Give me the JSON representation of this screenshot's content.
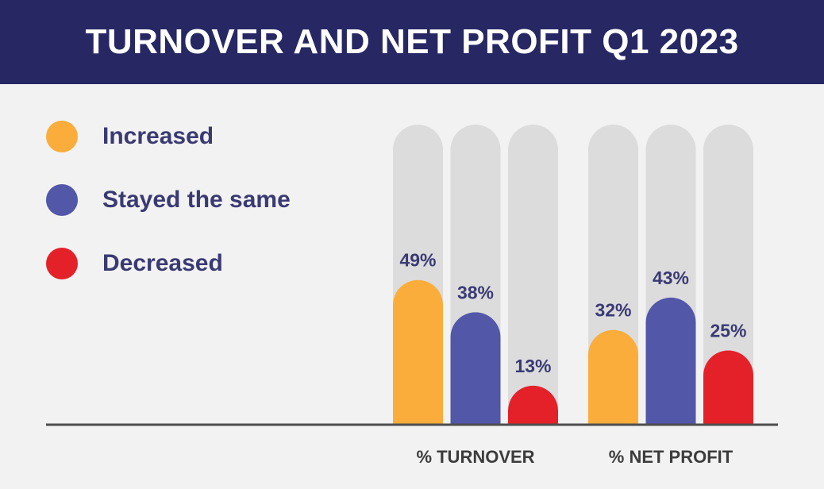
{
  "header": {
    "title": "TURNOVER AND NET PROFIT Q1 2023"
  },
  "colors": {
    "header_bg": "#262763",
    "increased": "#fbad3b",
    "stayed_the_same": "#5257a8",
    "decreased": "#e42129",
    "track": "#dcdcdd",
    "axis": "#4d4d4d",
    "text": "#3a3a73"
  },
  "legend": [
    {
      "label": "Increased",
      "color": "#fbad3b"
    },
    {
      "label": "Stayed the same",
      "color": "#5257a8"
    },
    {
      "label": "Decreased",
      "color": "#e42129"
    }
  ],
  "chart_data": {
    "type": "bar",
    "title": "TURNOVER AND NET PROFIT Q1 2023",
    "categories": [
      "% TURNOVER",
      "% NET PROFIT"
    ],
    "series": [
      {
        "name": "Increased",
        "values": [
          49,
          32
        ],
        "labels": [
          "49%",
          "32%"
        ],
        "color": "#fbad3b"
      },
      {
        "name": "Stayed the same",
        "values": [
          38,
          43
        ],
        "labels": [
          "38%",
          "43%"
        ],
        "color": "#5257a8"
      },
      {
        "name": "Decreased",
        "values": [
          13,
          25
        ],
        "labels": [
          "13%",
          "25%"
        ],
        "color": "#e42129"
      }
    ],
    "ylim": [
      0,
      100
    ],
    "grid": false,
    "legend_position": "left"
  }
}
